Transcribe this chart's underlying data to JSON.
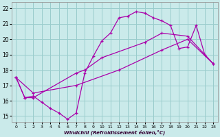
{
  "xlabel": "Windchill (Refroidissement éolien,°C)",
  "background_color": "#caeaea",
  "line_color": "#aa00aa",
  "grid_color": "#99cccc",
  "ylim": [
    14.6,
    22.4
  ],
  "xlim": [
    -0.5,
    23.5
  ],
  "yticks": [
    15,
    16,
    17,
    18,
    19,
    20,
    21,
    22
  ],
  "xticks": [
    0,
    1,
    2,
    3,
    4,
    5,
    6,
    7,
    8,
    9,
    10,
    11,
    12,
    13,
    14,
    15,
    16,
    17,
    18,
    19,
    20,
    21,
    22,
    23
  ],
  "line1_x": [
    0,
    1,
    2,
    3,
    4,
    5,
    6,
    7,
    8,
    9,
    10,
    11,
    12,
    13,
    14,
    15,
    16,
    17,
    18,
    19,
    20,
    21,
    22,
    23
  ],
  "line1_y": [
    17.5,
    16.2,
    16.3,
    15.9,
    15.5,
    15.2,
    14.8,
    15.2,
    17.8,
    18.9,
    19.9,
    20.4,
    21.4,
    21.5,
    21.8,
    21.7,
    21.4,
    21.2,
    20.9,
    19.4,
    19.5,
    20.9,
    19.0,
    18.4
  ],
  "line2_x": [
    0,
    1,
    2,
    7,
    8,
    10,
    15,
    17,
    20,
    23
  ],
  "line2_y": [
    17.5,
    16.2,
    16.2,
    17.8,
    18.0,
    18.8,
    19.8,
    20.4,
    20.2,
    18.4
  ],
  "line3_x": [
    0,
    2,
    7,
    12,
    17,
    20,
    23
  ],
  "line3_y": [
    17.5,
    16.5,
    17.0,
    18.0,
    19.3,
    20.0,
    18.4
  ]
}
